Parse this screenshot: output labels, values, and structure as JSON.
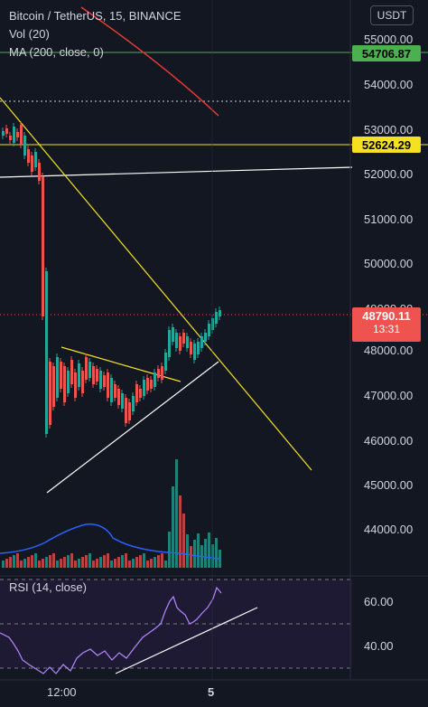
{
  "header": {
    "symbol": "Bitcoin / TetherUS, 15, BINANCE",
    "vol": "Vol (20)",
    "ma": "MA (200, close, 0)",
    "currency_button": "USDT"
  },
  "price_axis": {
    "ticks": [
      "55000.00",
      "54000.00",
      "53000.00",
      "52000.00",
      "51000.00",
      "50000.00",
      "49000.00",
      "48000.00",
      "47000.00",
      "46000.00",
      "45000.00",
      "44000.00"
    ]
  },
  "price_tags": {
    "green": {
      "value": "54706.87",
      "color": "#4caf50"
    },
    "yellow": {
      "value": "52624.29",
      "color": "#f5e11f"
    },
    "current_price": {
      "value": "48790.11",
      "color": "#ef5350"
    },
    "countdown": "13:31"
  },
  "rsi": {
    "label": "RSI (14, close)",
    "ticks": [
      "60.00",
      "40.00"
    ]
  },
  "time_axis": {
    "labels": [
      "12:00",
      "5"
    ]
  },
  "colors": {
    "up": "#26a69a",
    "down": "#ef5350",
    "ma": "#e53935",
    "trend": "#f5e11f",
    "support": "#ffffff",
    "rsi": "#b388ff",
    "vol_ma": "#2962ff"
  }
}
